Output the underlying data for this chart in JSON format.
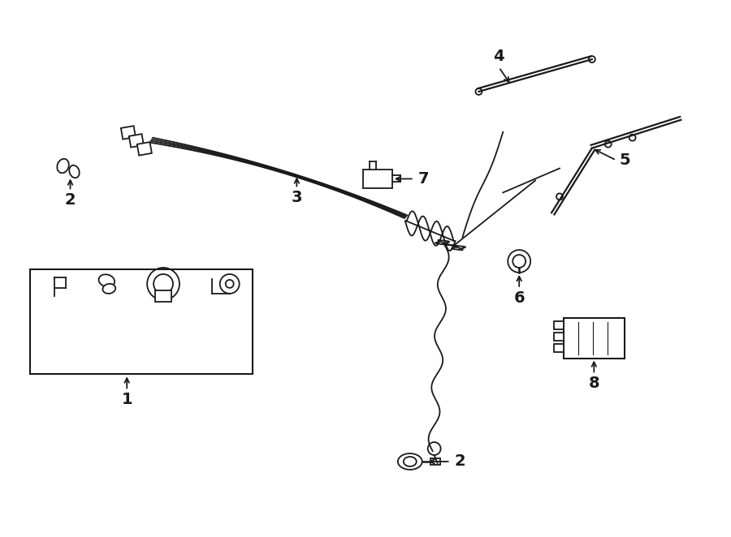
{
  "bg_color": "#ffffff",
  "line_color": "#1a1a1a",
  "fig_width": 9.0,
  "fig_height": 6.62,
  "dpi": 100,
  "label_fontsize": 14,
  "label_fontweight": "bold"
}
